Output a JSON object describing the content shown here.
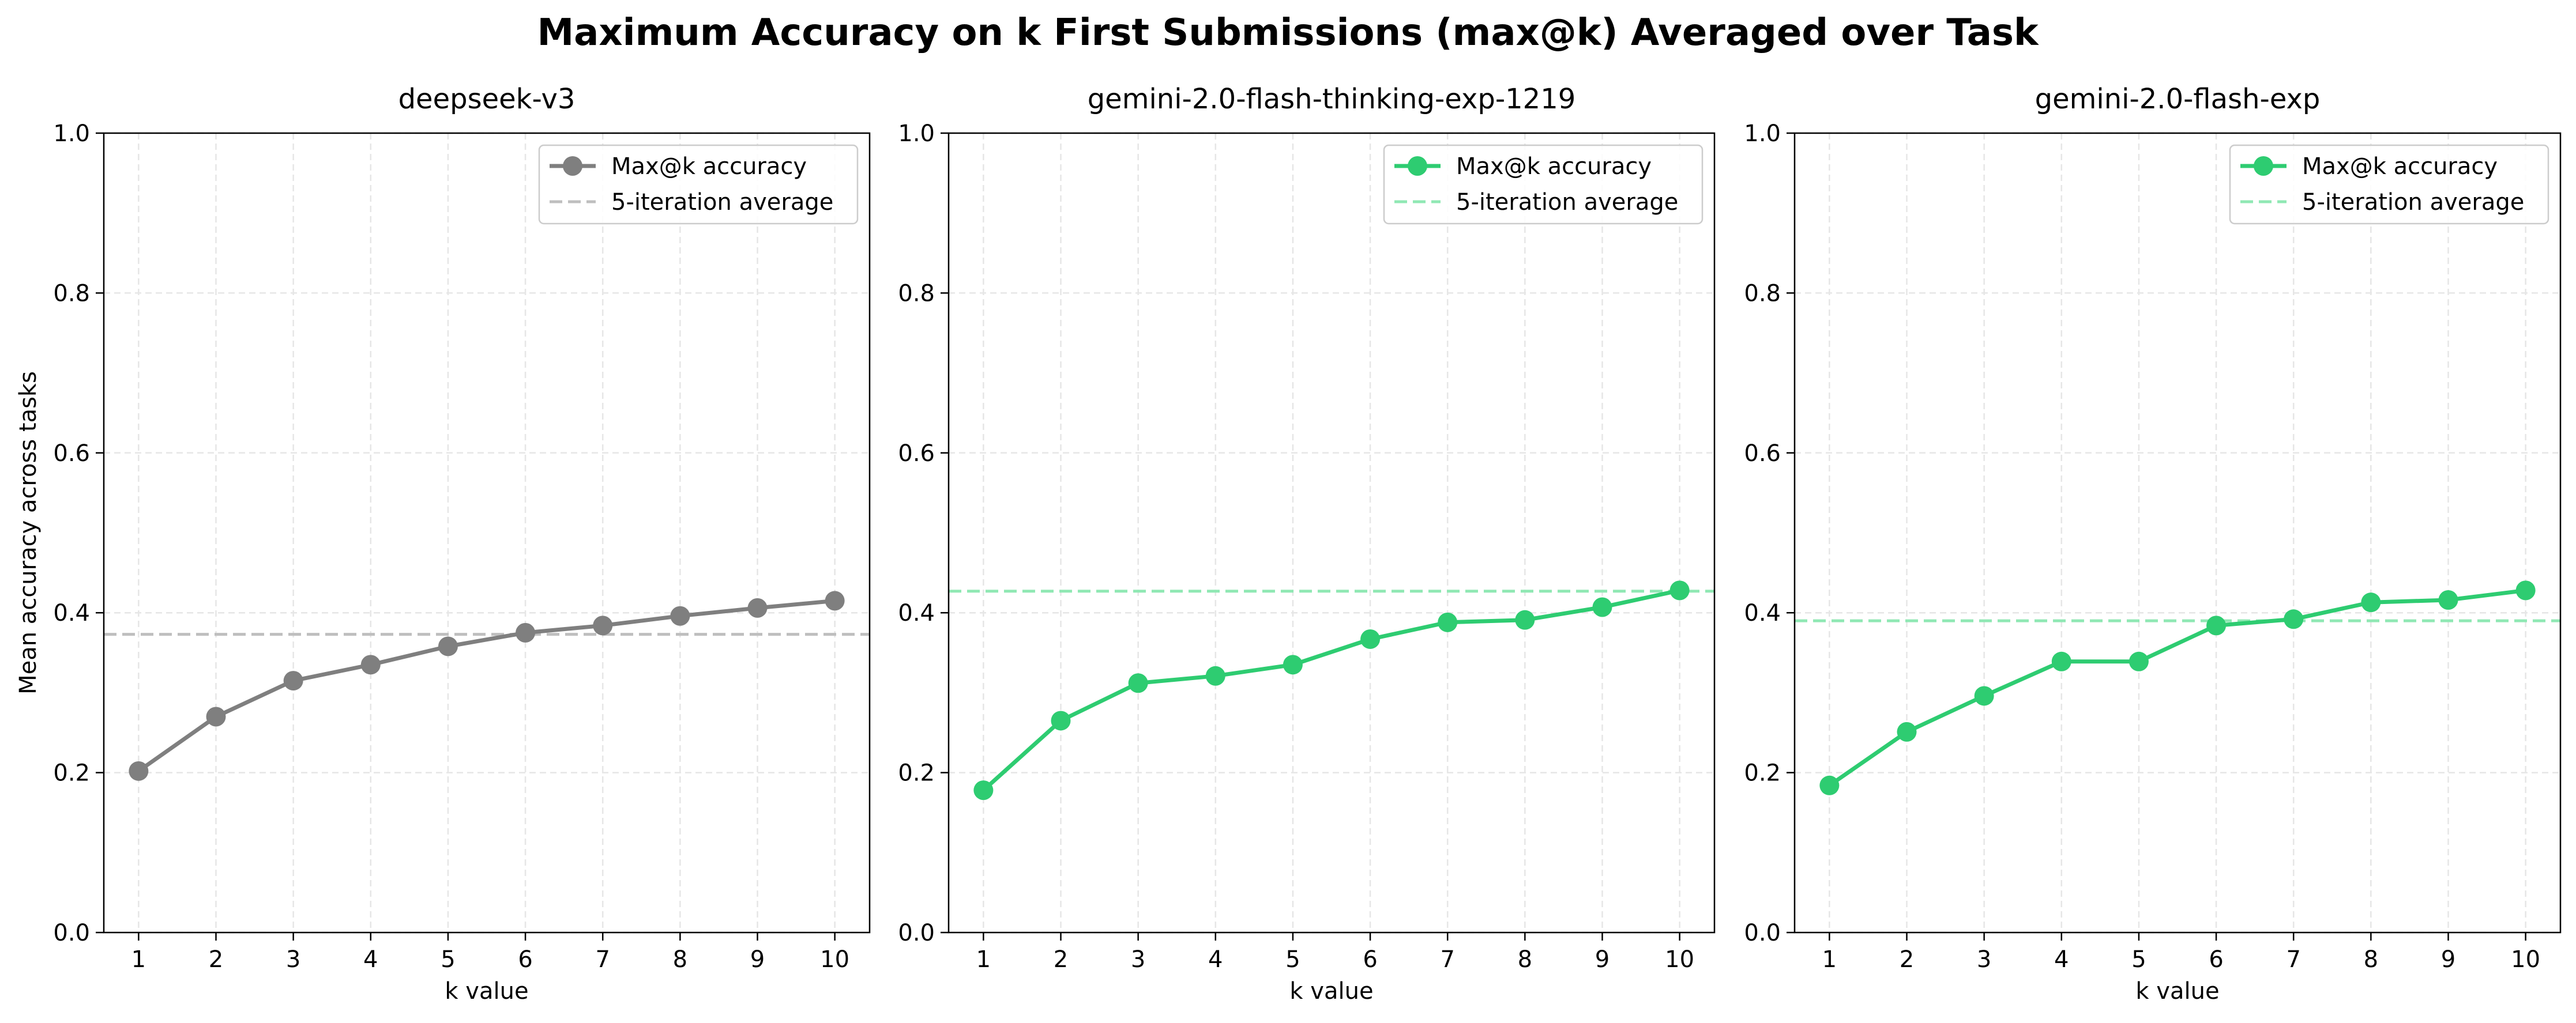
{
  "figure": {
    "suptitle": "Maximum Accuracy on k First Submissions (max@k) Averaged over Task"
  },
  "chart_data": [
    {
      "type": "line",
      "title": "deepseek-v3",
      "xlabel": "k value",
      "ylabel": "Mean accuracy across tasks",
      "x": [
        1,
        2,
        3,
        4,
        5,
        6,
        7,
        8,
        9,
        10
      ],
      "series": [
        {
          "name": "Max@k accuracy",
          "values": [
            0.202,
            0.27,
            0.315,
            0.335,
            0.358,
            0.375,
            0.384,
            0.396,
            0.406,
            0.415
          ],
          "color": "#7f7f7f",
          "marker": "circle"
        }
      ],
      "reference_line": {
        "name": "5-iteration average",
        "value": 0.373,
        "color": "#bfbfbf",
        "style": "dashed"
      },
      "xticks": [
        "1",
        "2",
        "3",
        "4",
        "5",
        "6",
        "7",
        "8",
        "9",
        "10"
      ],
      "yticks": [
        "0.0",
        "0.2",
        "0.4",
        "0.6",
        "0.8",
        "1.0"
      ],
      "ylim": [
        0,
        1
      ],
      "xlim": [
        0.55,
        10.45
      ],
      "grid": true,
      "legend": "top-right"
    },
    {
      "type": "line",
      "title": "gemini-2.0-flash-thinking-exp-1219",
      "xlabel": "k value",
      "ylabel": "",
      "x": [
        1,
        2,
        3,
        4,
        5,
        6,
        7,
        8,
        9,
        10
      ],
      "series": [
        {
          "name": "Max@k accuracy",
          "values": [
            0.178,
            0.265,
            0.312,
            0.321,
            0.335,
            0.367,
            0.388,
            0.391,
            0.407,
            0.428
          ],
          "color": "#2ecc71",
          "marker": "circle"
        }
      ],
      "reference_line": {
        "name": "5-iteration average",
        "value": 0.427,
        "color": "#90e8b4",
        "style": "dashed"
      },
      "xticks": [
        "1",
        "2",
        "3",
        "4",
        "5",
        "6",
        "7",
        "8",
        "9",
        "10"
      ],
      "yticks": [
        "0.0",
        "0.2",
        "0.4",
        "0.6",
        "0.8",
        "1.0"
      ],
      "ylim": [
        0,
        1
      ],
      "xlim": [
        0.55,
        10.45
      ],
      "grid": true,
      "legend": "top-right"
    },
    {
      "type": "line",
      "title": "gemini-2.0-flash-exp",
      "xlabel": "k value",
      "ylabel": "",
      "x": [
        1,
        2,
        3,
        4,
        5,
        6,
        7,
        8,
        9,
        10
      ],
      "series": [
        {
          "name": "Max@k accuracy",
          "values": [
            0.184,
            0.251,
            0.296,
            0.339,
            0.339,
            0.384,
            0.392,
            0.413,
            0.416,
            0.428
          ],
          "color": "#2ecc71",
          "marker": "circle"
        }
      ],
      "reference_line": {
        "name": "5-iteration average",
        "value": 0.39,
        "color": "#90e8b4",
        "style": "dashed"
      },
      "xticks": [
        "1",
        "2",
        "3",
        "4",
        "5",
        "6",
        "7",
        "8",
        "9",
        "10"
      ],
      "yticks": [
        "0.0",
        "0.2",
        "0.4",
        "0.6",
        "0.8",
        "1.0"
      ],
      "ylim": [
        0,
        1
      ],
      "xlim": [
        0.55,
        10.45
      ],
      "grid": true,
      "legend": "top-right"
    }
  ]
}
